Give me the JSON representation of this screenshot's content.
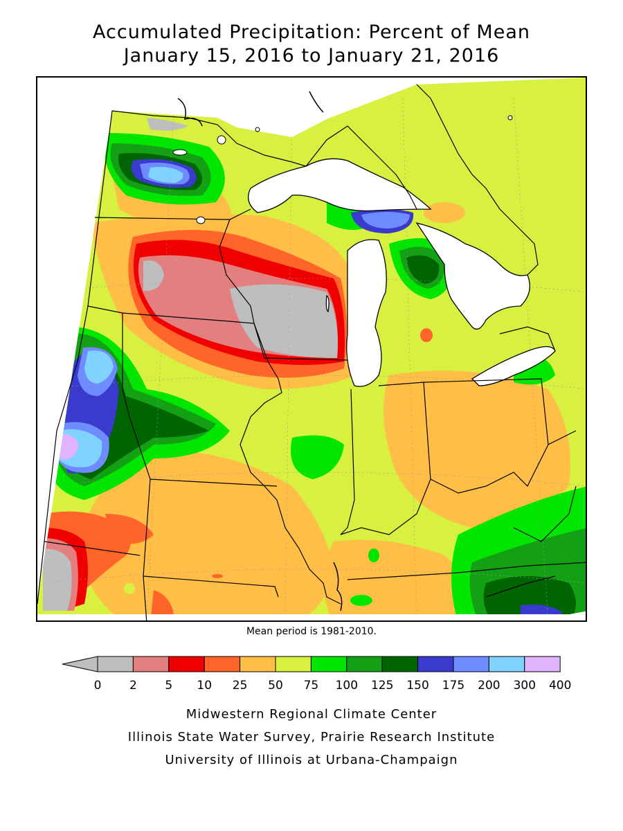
{
  "title": {
    "line1": "Accumulated Precipitation: Percent of Mean",
    "line2": "January 15, 2016 to January 21, 2016"
  },
  "map": {
    "note": "Mean period is 1981-2010."
  },
  "legend": {
    "bins": [
      {
        "label": "0",
        "color": "#bebebe"
      },
      {
        "label": "2",
        "color": "#e37f7f"
      },
      {
        "label": "5",
        "color": "#f00000"
      },
      {
        "label": "10",
        "color": "#ff6428"
      },
      {
        "label": "25",
        "color": "#ffbe46"
      },
      {
        "label": "50",
        "color": "#d8f040"
      },
      {
        "label": "75",
        "color": "#00e600"
      },
      {
        "label": "100",
        "color": "#14a014"
      },
      {
        "label": "125",
        "color": "#006400"
      },
      {
        "label": "150",
        "color": "#3a3acd"
      },
      {
        "label": "175",
        "color": "#6e8cff"
      },
      {
        "label": "200",
        "color": "#82d2ff"
      },
      {
        "label": "300",
        "color": "#e0b4ff"
      },
      {
        "label": "400",
        "color": ""
      }
    ]
  },
  "credits": {
    "line1": "Midwestern Regional Climate Center",
    "line2": "Illinois State Water Survey, Prairie Research Institute",
    "line3": "University of Illinois at Urbana-Champaign"
  }
}
